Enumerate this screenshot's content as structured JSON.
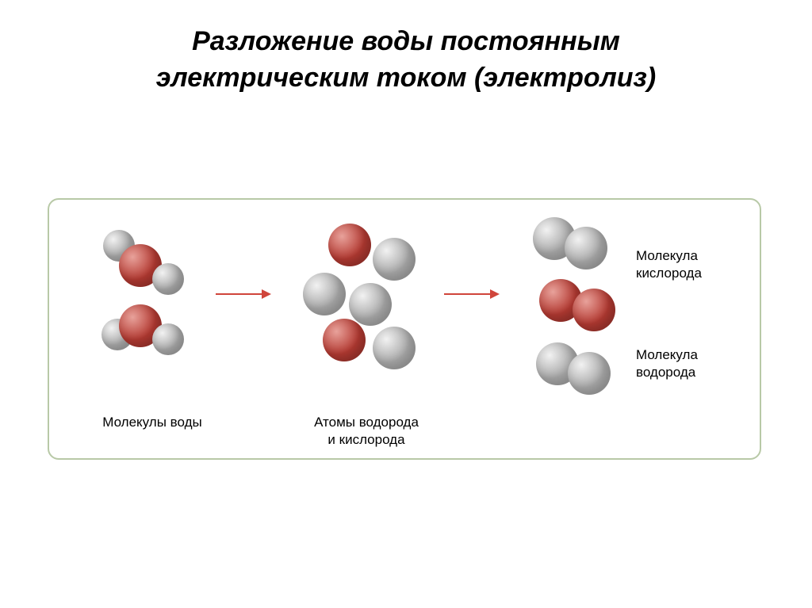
{
  "title": {
    "line1": "Разложение воды постоянным",
    "line2": "электрическим током (электролиз)",
    "fontsize": 34,
    "color": "#000000"
  },
  "box": {
    "border_color": "#b8c9a7",
    "border_radius": 14,
    "background": "#ffffff"
  },
  "colors": {
    "oxygen_fill": "#b43a32",
    "oxygen_highlight": "#e8a29b",
    "hydrogen_fill": "#a8a8a8",
    "hydrogen_highlight": "#f2f2f2",
    "arrow": "#d0453b",
    "label": "#000000"
  },
  "sizes": {
    "oxygen_d": 54,
    "hydrogen_d": 40,
    "hydrogen_d_large": 54
  },
  "labels": {
    "water": "Молекулы воды",
    "atoms_line1": "Атомы водорода",
    "atoms_line2": "и кислорода",
    "o2_line1": "Молекула",
    "o2_line2": "кислорода",
    "h2_line1": "Молекула",
    "h2_line2": "водорода",
    "fontsize": 17
  },
  "arrows": {
    "length": 70
  }
}
